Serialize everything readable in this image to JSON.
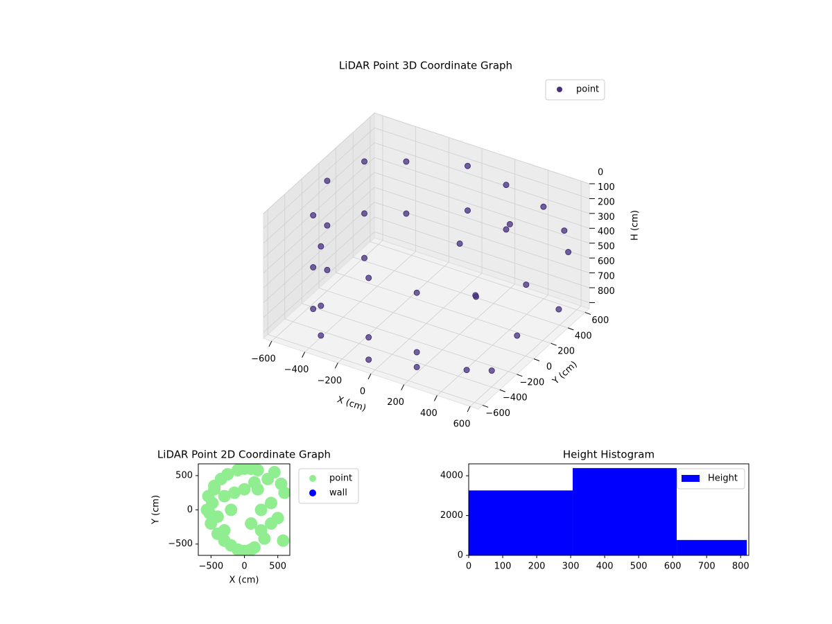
{
  "chart_data": [
    {
      "type": "scatter3d",
      "title": "LiDAR Point 3D Coordinate Graph",
      "x_label": "X (cm)",
      "y_label": "Y (cm)",
      "z_label": "H (cm)",
      "xlim": [
        -650,
        650
      ],
      "ylim": [
        -650,
        650
      ],
      "zlim": [
        0,
        840
      ],
      "z_inverted": true,
      "xticks": [
        {
          "value": -600,
          "label": "−600"
        },
        {
          "value": -400,
          "label": "−400"
        },
        {
          "value": -200,
          "label": "−200"
        },
        0,
        200,
        400,
        600
      ],
      "yticks": [
        {
          "value": -600,
          "label": "−600"
        },
        {
          "value": -400,
          "label": "−400"
        },
        {
          "value": -200,
          "label": "−200"
        },
        0,
        200,
        400,
        600
      ],
      "zticks": [
        0,
        100,
        200,
        300,
        400,
        500,
        600,
        700,
        800
      ],
      "grid": true,
      "legend": "upper right",
      "series": [
        {
          "name": "point",
          "color": "#46307e",
          "x": [
            -600,
            -600,
            -600,
            -530,
            -530,
            -530,
            -530,
            -530,
            -530,
            -380,
            -380,
            -380,
            -380,
            -380,
            -50,
            -50,
            -50,
            -50,
            -50,
            200,
            200,
            200,
            250,
            250,
            350,
            450,
            550,
            500,
            600,
            400,
            300,
            550,
            620,
            150,
            450,
            600
          ],
          "y": [
            0,
            0,
            0,
            -300,
            -300,
            -300,
            300,
            300,
            300,
            -500,
            -500,
            -500,
            500,
            500,
            -580,
            -580,
            -580,
            580,
            580,
            -500,
            -500,
            -500,
            450,
            450,
            300,
            500,
            550,
            200,
            -100,
            -200,
            0,
            -300,
            350,
            100,
            -400,
            500
          ],
          "z": [
            100,
            400,
            700,
            150,
            500,
            780,
            100,
            450,
            750,
            200,
            600,
            800,
            150,
            500,
            250,
            650,
            800,
            100,
            400,
            300,
            700,
            800,
            50,
            350,
            200,
            150,
            300,
            500,
            650,
            400,
            550,
            800,
            700,
            300,
            780,
            400
          ]
        }
      ]
    },
    {
      "type": "scatter",
      "title": "LiDAR Point 2D Coordinate Graph",
      "x_label": "X (cm)",
      "y_label": "Y (cm)",
      "xlim": [
        -690,
        680
      ],
      "ylim": [
        -665,
        672
      ],
      "xticks": [
        {
          "value": -500,
          "label": "−500"
        },
        0,
        500
      ],
      "yticks": [
        {
          "value": -500,
          "label": "−500"
        },
        0,
        500
      ],
      "legend": "outside right",
      "series": [
        {
          "name": "point",
          "color": "#90ee90",
          "x": [
            -560,
            -540,
            -500,
            -450,
            -400,
            -350,
            -300,
            -250,
            -200,
            -100,
            0,
            100,
            200,
            -100,
            0,
            100,
            150,
            -200,
            -300,
            -400,
            -480,
            -520,
            -450,
            -300,
            -150,
            0,
            100,
            200,
            250,
            350,
            450,
            550,
            600,
            400,
            300,
            500,
            580,
            250,
            150,
            400
          ],
          "y": [
            0,
            200,
            -200,
            350,
            -350,
            450,
            -450,
            520,
            -520,
            580,
            600,
            600,
            580,
            -580,
            -600,
            -580,
            -550,
            0,
            200,
            -100,
            100,
            -50,
            300,
            -300,
            250,
            300,
            -200,
            300,
            -300,
            450,
            550,
            380,
            250,
            100,
            -420,
            -120,
            -450,
            0,
            400,
            -200
          ]
        },
        {
          "name": "wall",
          "color": "#0000ff",
          "x": [],
          "y": []
        }
      ]
    },
    {
      "type": "histogram",
      "title": "Height Histogram",
      "bins": [
        0,
        306,
        612,
        818
      ],
      "values": [
        3263,
        4386,
        772
      ],
      "xlim": [
        0,
        824
      ],
      "ylim": [
        0,
        4600
      ],
      "xticks": [
        0,
        100,
        200,
        300,
        400,
        500,
        600,
        700,
        800
      ],
      "yticks": [
        0,
        2000,
        4000
      ],
      "legend": "upper right",
      "series_name": "Height",
      "color": "#0000ff"
    }
  ]
}
